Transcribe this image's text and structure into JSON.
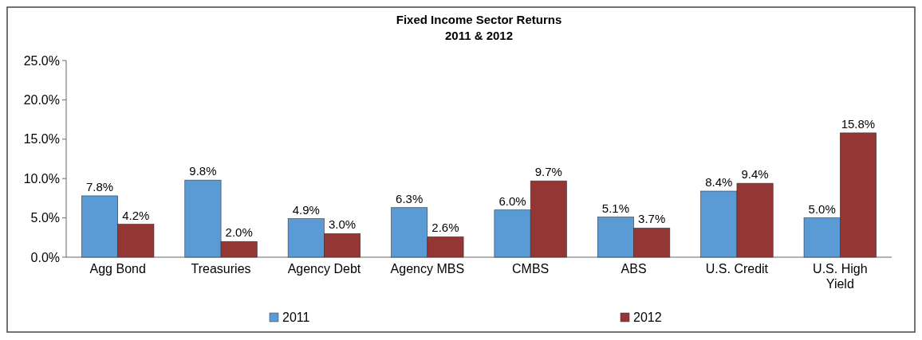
{
  "chart_data": {
    "type": "bar",
    "title": "Fixed Income Sector Returns\n2011 & 2012",
    "categories": [
      "Agg Bond",
      "Treasuries",
      "Agency Debt",
      "Agency MBS",
      "CMBS",
      "ABS",
      "U.S. Credit",
      "U.S. High Yield"
    ],
    "series": [
      {
        "name": "2011",
        "color": "#5b9bd5",
        "values": [
          7.8,
          9.8,
          4.9,
          6.3,
          6.0,
          5.1,
          8.4,
          5.0
        ],
        "value_labels": [
          "7.8%",
          "9.8%",
          "4.9%",
          "6.3%",
          "6.0%",
          "5.1%",
          "8.4%",
          "5.0%"
        ]
      },
      {
        "name": "2012",
        "color": "#943634",
        "values": [
          4.2,
          2.0,
          3.0,
          2.6,
          9.7,
          3.7,
          9.4,
          15.8
        ],
        "value_labels": [
          "4.2%",
          "2.0%",
          "3.0%",
          "2.6%",
          "9.7%",
          "3.7%",
          "9.4%",
          "15.8%"
        ]
      }
    ],
    "ylim": [
      0,
      25
    ],
    "yticks": [
      {
        "value": 0,
        "label": "0.0%"
      },
      {
        "value": 5,
        "label": "5.0%"
      },
      {
        "value": 10,
        "label": "10.0%"
      },
      {
        "value": 15,
        "label": "15.0%"
      },
      {
        "value": 20,
        "label": "20.0%"
      },
      {
        "value": 25,
        "label": "25.0%"
      }
    ],
    "grid": false,
    "legend": "bottom"
  }
}
